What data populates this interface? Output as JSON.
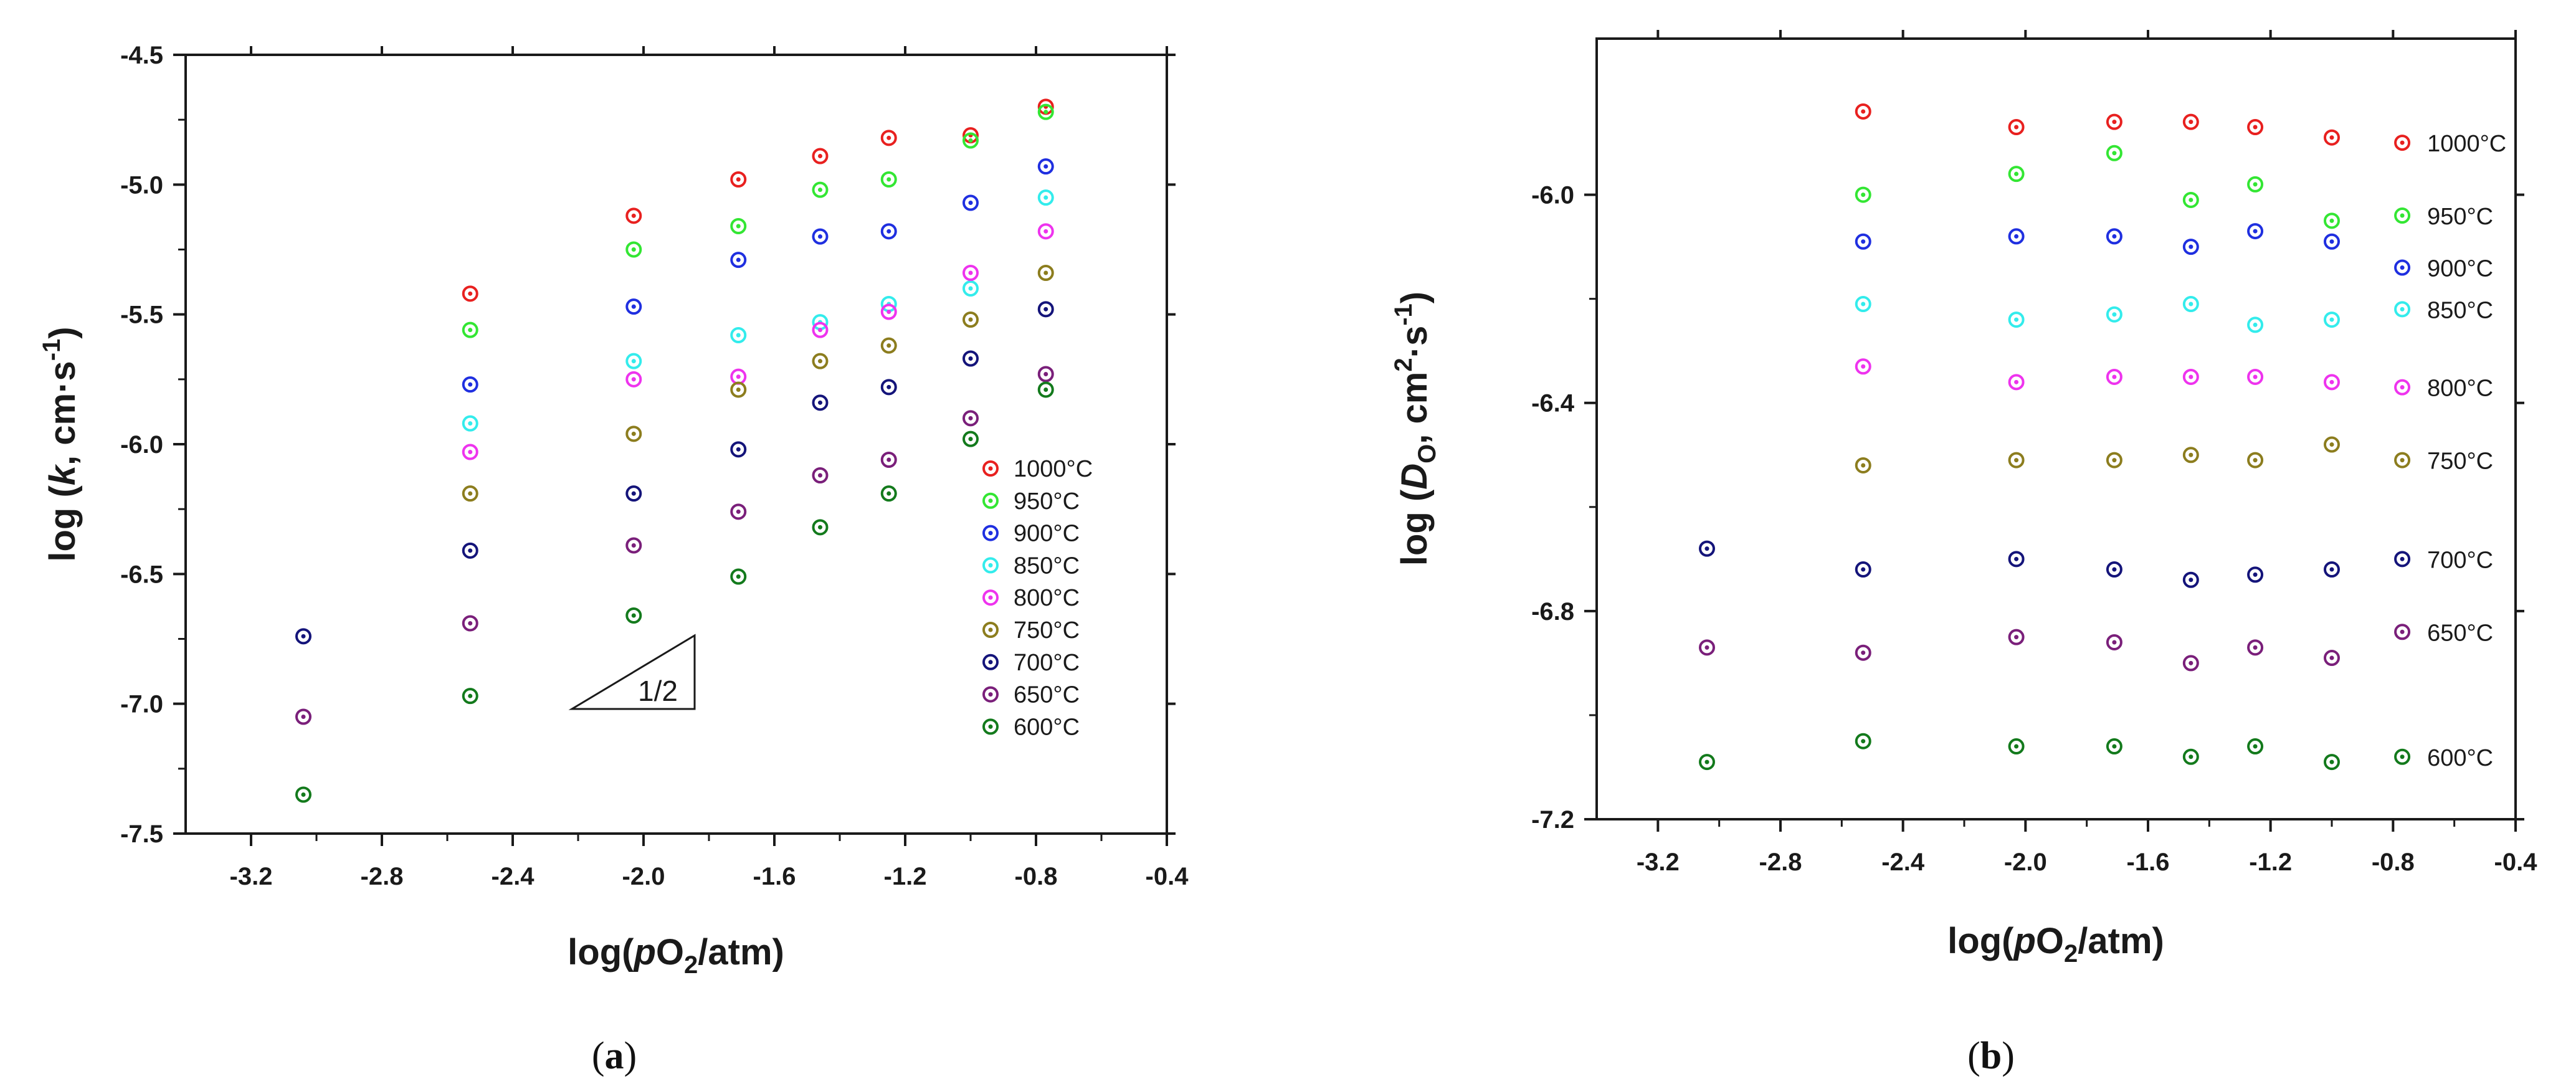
{
  "colors": {
    "1000°C": "#e8201f",
    "950°C": "#33e633",
    "900°C": "#1f2fe0",
    "850°C": "#33ecec",
    "800°C": "#ee33ee",
    "750°C": "#8c7d1e",
    "700°C": "#14147a",
    "650°C": "#7a1f7a",
    "600°C": "#137a1c"
  },
  "chart_data": [
    {
      "type": "scatter",
      "caption_letter": "a",
      "ylabel": {
        "prefix": "log (",
        "italic": "k",
        "mid": ", cm·s",
        "sup": "-1",
        "suffix": ")"
      },
      "xlabel": {
        "prefix": "log(",
        "italic": "p",
        "mid": "O",
        "sub": "2",
        "suffix": "/atm)"
      },
      "xlim": [
        -3.4,
        -0.4
      ],
      "ylim": [
        -7.5,
        -4.5
      ],
      "xticks": [
        -3.2,
        -2.8,
        -2.4,
        -2.0,
        -1.6,
        -1.2,
        -0.8,
        -0.4
      ],
      "xtick_labels": [
        "-3.2",
        "-2.8",
        "-2.4",
        "-2.0",
        "-1.6",
        "-1.2",
        "-0.8",
        "-0.4"
      ],
      "yticks": [
        -7.5,
        -7.0,
        -6.5,
        -6.0,
        -5.5,
        -5.0,
        -4.5
      ],
      "ytick_labels": [
        "-7.5",
        "-7.0",
        "-6.5",
        "-6.0",
        "-5.5",
        "-5.0",
        "-4.5"
      ],
      "legend_position": "bottom-right",
      "annotation": {
        "text": "1/2",
        "shape": "slope triangle"
      },
      "x": [
        -3.04,
        -2.53,
        -2.03,
        -1.71,
        -1.46,
        -1.25,
        -1.0,
        -0.77
      ],
      "series": [
        {
          "name": "1000°C",
          "points": [
            [
              -2.53,
              -5.42
            ],
            [
              -2.03,
              -5.12
            ],
            [
              -1.71,
              -4.98
            ],
            [
              -1.46,
              -4.89
            ],
            [
              -1.25,
              -4.82
            ],
            [
              -1.0,
              -4.81
            ],
            [
              -0.77,
              -4.7
            ]
          ]
        },
        {
          "name": "950°C",
          "points": [
            [
              -2.53,
              -5.56
            ],
            [
              -2.03,
              -5.25
            ],
            [
              -1.71,
              -5.16
            ],
            [
              -1.46,
              -5.02
            ],
            [
              -1.25,
              -4.98
            ],
            [
              -1.0,
              -4.83
            ],
            [
              -0.77,
              -4.72
            ]
          ]
        },
        {
          "name": "900°C",
          "points": [
            [
              -2.53,
              -5.77
            ],
            [
              -2.03,
              -5.47
            ],
            [
              -1.71,
              -5.29
            ],
            [
              -1.46,
              -5.2
            ],
            [
              -1.25,
              -5.18
            ],
            [
              -1.0,
              -5.07
            ],
            [
              -0.77,
              -4.93
            ]
          ]
        },
        {
          "name": "850°C",
          "points": [
            [
              -2.53,
              -5.92
            ],
            [
              -2.03,
              -5.68
            ],
            [
              -1.71,
              -5.58
            ],
            [
              -1.46,
              -5.53
            ],
            [
              -1.25,
              -5.46
            ],
            [
              -1.0,
              -5.4
            ],
            [
              -0.77,
              -5.05
            ]
          ]
        },
        {
          "name": "800°C",
          "points": [
            [
              -2.53,
              -6.03
            ],
            [
              -2.03,
              -5.75
            ],
            [
              -1.71,
              -5.74
            ],
            [
              -1.46,
              -5.56
            ],
            [
              -1.25,
              -5.49
            ],
            [
              -1.0,
              -5.34
            ],
            [
              -0.77,
              -5.18
            ]
          ]
        },
        {
          "name": "750°C",
          "points": [
            [
              -2.53,
              -6.19
            ],
            [
              -2.03,
              -5.96
            ],
            [
              -1.71,
              -5.79
            ],
            [
              -1.46,
              -5.68
            ],
            [
              -1.25,
              -5.62
            ],
            [
              -1.0,
              -5.52
            ],
            [
              -0.77,
              -5.34
            ]
          ]
        },
        {
          "name": "700°C",
          "points": [
            [
              -3.04,
              -6.74
            ],
            [
              -2.53,
              -6.41
            ],
            [
              -2.03,
              -6.19
            ],
            [
              -1.71,
              -6.02
            ],
            [
              -1.46,
              -5.84
            ],
            [
              -1.25,
              -5.78
            ],
            [
              -1.0,
              -5.67
            ],
            [
              -0.77,
              -5.48
            ]
          ]
        },
        {
          "name": "650°C",
          "points": [
            [
              -3.04,
              -7.05
            ],
            [
              -2.53,
              -6.69
            ],
            [
              -2.03,
              -6.39
            ],
            [
              -1.71,
              -6.26
            ],
            [
              -1.46,
              -6.12
            ],
            [
              -1.25,
              -6.06
            ],
            [
              -1.0,
              -5.9
            ],
            [
              -0.77,
              -5.73
            ]
          ]
        },
        {
          "name": "600°C",
          "points": [
            [
              -3.04,
              -7.35
            ],
            [
              -2.53,
              -6.97
            ],
            [
              -2.03,
              -6.66
            ],
            [
              -1.71,
              -6.51
            ],
            [
              -1.46,
              -6.32
            ],
            [
              -1.25,
              -6.19
            ],
            [
              -1.0,
              -5.98
            ],
            [
              -0.77,
              -5.79
            ]
          ]
        }
      ]
    },
    {
      "type": "scatter",
      "caption_letter": "b",
      "ylabel": {
        "prefix": "log (",
        "italic": "D",
        "sub": "O",
        "mid": ", cm",
        "sup": "2",
        "mid2": "·s",
        "sup2": "-1",
        "suffix": ")"
      },
      "xlabel": {
        "prefix": "log(",
        "italic": "p",
        "mid": "O",
        "sub": "2",
        "suffix": "/atm)"
      },
      "xlim": [
        -3.4,
        -0.4
      ],
      "ylim": [
        -7.2,
        -5.7
      ],
      "xticks": [
        -3.2,
        -2.8,
        -2.4,
        -2.0,
        -1.6,
        -1.2,
        -0.8,
        -0.4
      ],
      "xtick_labels": [
        "-3.2",
        "-2.8",
        "-2.4",
        "-2.0",
        "-1.6",
        "-1.2",
        "-0.8",
        "-0.4"
      ],
      "yticks": [
        -7.2,
        -6.8,
        -6.4,
        -6.0
      ],
      "ytick_labels": [
        "-7.2",
        "-6.8",
        "-6.4",
        "-6.0"
      ],
      "legend_position": "right (inline labels)",
      "series": [
        {
          "name": "1000°C",
          "points": [
            [
              -2.53,
              -5.84
            ],
            [
              -2.03,
              -5.87
            ],
            [
              -1.71,
              -5.86
            ],
            [
              -1.46,
              -5.86
            ],
            [
              -1.25,
              -5.87
            ],
            [
              -1.0,
              -5.89
            ],
            [
              -0.77,
              -5.9
            ]
          ]
        },
        {
          "name": "950°C",
          "points": [
            [
              -2.53,
              -6.0
            ],
            [
              -2.03,
              -5.96
            ],
            [
              -1.71,
              -5.92
            ],
            [
              -1.46,
              -6.01
            ],
            [
              -1.25,
              -5.98
            ],
            [
              -1.0,
              -6.05
            ],
            [
              -0.77,
              -6.04
            ]
          ]
        },
        {
          "name": "900°C",
          "points": [
            [
              -2.53,
              -6.09
            ],
            [
              -2.03,
              -6.08
            ],
            [
              -1.71,
              -6.08
            ],
            [
              -1.46,
              -6.1
            ],
            [
              -1.25,
              -6.07
            ],
            [
              -1.0,
              -6.09
            ],
            [
              -0.77,
              -6.14
            ]
          ]
        },
        {
          "name": "850°C",
          "points": [
            [
              -2.53,
              -6.21
            ],
            [
              -2.03,
              -6.24
            ],
            [
              -1.71,
              -6.23
            ],
            [
              -1.46,
              -6.21
            ],
            [
              -1.25,
              -6.25
            ],
            [
              -1.0,
              -6.24
            ],
            [
              -0.77,
              -6.22
            ]
          ]
        },
        {
          "name": "800°C",
          "points": [
            [
              -2.53,
              -6.33
            ],
            [
              -2.03,
              -6.36
            ],
            [
              -1.71,
              -6.35
            ],
            [
              -1.46,
              -6.35
            ],
            [
              -1.25,
              -6.35
            ],
            [
              -1.0,
              -6.36
            ],
            [
              -0.77,
              -6.37
            ]
          ]
        },
        {
          "name": "750°C",
          "points": [
            [
              -2.53,
              -6.52
            ],
            [
              -2.03,
              -6.51
            ],
            [
              -1.71,
              -6.51
            ],
            [
              -1.46,
              -6.5
            ],
            [
              -1.25,
              -6.51
            ],
            [
              -1.0,
              -6.48
            ],
            [
              -0.77,
              -6.51
            ]
          ]
        },
        {
          "name": "700°C",
          "points": [
            [
              -3.04,
              -6.68
            ],
            [
              -2.53,
              -6.72
            ],
            [
              -2.03,
              -6.7
            ],
            [
              -1.71,
              -6.72
            ],
            [
              -1.46,
              -6.74
            ],
            [
              -1.25,
              -6.73
            ],
            [
              -1.0,
              -6.72
            ],
            [
              -0.77,
              -6.7
            ]
          ]
        },
        {
          "name": "650°C",
          "points": [
            [
              -3.04,
              -6.87
            ],
            [
              -2.53,
              -6.88
            ],
            [
              -2.03,
              -6.85
            ],
            [
              -1.71,
              -6.86
            ],
            [
              -1.46,
              -6.9
            ],
            [
              -1.25,
              -6.87
            ],
            [
              -1.0,
              -6.89
            ],
            [
              -0.77,
              -6.84
            ]
          ]
        },
        {
          "name": "600°C",
          "points": [
            [
              -3.04,
              -7.09
            ],
            [
              -2.53,
              -7.05
            ],
            [
              -2.03,
              -7.06
            ],
            [
              -1.71,
              -7.06
            ],
            [
              -1.46,
              -7.08
            ],
            [
              -1.25,
              -7.06
            ],
            [
              -1.0,
              -7.09
            ],
            [
              -0.77,
              -7.08
            ]
          ]
        }
      ],
      "inline_labels": [
        "1000°C",
        "950°C",
        "900°C",
        "850°C",
        "800°C",
        "750°C",
        "700°C",
        "650°C",
        "600°C"
      ]
    }
  ]
}
